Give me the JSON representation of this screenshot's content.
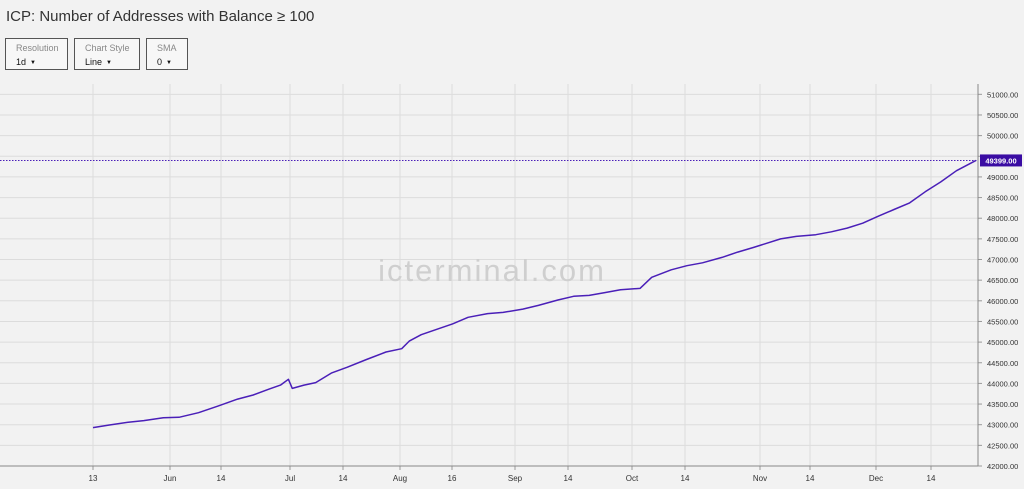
{
  "title": "ICP: Number of Addresses with Balance ≥ 100",
  "controls": {
    "resolution": {
      "label": "Resolution",
      "value": "1d"
    },
    "chart_style": {
      "label": "Chart Style",
      "value": "Line"
    },
    "sma": {
      "label": "SMA",
      "value": "0"
    }
  },
  "watermark": "icterminal.com",
  "colors": {
    "line": "#4a1fb8",
    "background": "#f2f2f2",
    "grid": "#dcdcdc",
    "last_value_badge": "#3a0ca3"
  },
  "chart_data": {
    "type": "line",
    "title": "ICP: Number of Addresses with Balance ≥ 100",
    "xlabel": "",
    "ylabel": "",
    "ylim": [
      42000,
      51250
    ],
    "grid": true,
    "last_value_label": "49399.00",
    "x_ticks": [
      "13",
      "Jun",
      "14",
      "Jul",
      "14",
      "Aug",
      "16",
      "Sep",
      "14",
      "Oct",
      "14",
      "Nov",
      "14",
      "Dec",
      "14"
    ],
    "y_ticks": [
      "51000.00",
      "50500.00",
      "50000.00",
      "49500.00",
      "49000.00",
      "48500.00",
      "48000.00",
      "47500.00",
      "47000.00",
      "46500.00",
      "46000.00",
      "45500.00",
      "45000.00",
      "44500.00",
      "44000.00",
      "43500.00",
      "43000.00",
      "42500.00",
      "42000.00"
    ],
    "x_range": [
      "2023-05-13",
      "2023-12-25"
    ],
    "series": [
      {
        "points": [
          [
            "2023-05-13",
            42930
          ],
          [
            "2023-05-17",
            42990
          ],
          [
            "2023-05-22",
            43060
          ],
          [
            "2023-05-26",
            43100
          ],
          [
            "2023-05-31",
            43170
          ],
          [
            "2023-06-04",
            43180
          ],
          [
            "2023-06-09",
            43290
          ],
          [
            "2023-06-14",
            43450
          ],
          [
            "2023-06-19",
            43620
          ],
          [
            "2023-06-23",
            43720
          ],
          [
            "2023-06-27",
            43860
          ],
          [
            "2023-06-30",
            43960
          ],
          [
            "2023-07-02",
            44100
          ],
          [
            "2023-07-03",
            43880
          ],
          [
            "2023-07-06",
            43960
          ],
          [
            "2023-07-09",
            44020
          ],
          [
            "2023-07-13",
            44250
          ],
          [
            "2023-07-17",
            44390
          ],
          [
            "2023-07-22",
            44580
          ],
          [
            "2023-07-27",
            44760
          ],
          [
            "2023-07-31",
            44840
          ],
          [
            "2023-08-02",
            45030
          ],
          [
            "2023-08-05",
            45180
          ],
          [
            "2023-08-09",
            45310
          ],
          [
            "2023-08-13",
            45440
          ],
          [
            "2023-08-17",
            45600
          ],
          [
            "2023-08-22",
            45690
          ],
          [
            "2023-08-26",
            45720
          ],
          [
            "2023-08-31",
            45800
          ],
          [
            "2023-09-04",
            45890
          ],
          [
            "2023-09-09",
            46020
          ],
          [
            "2023-09-13",
            46110
          ],
          [
            "2023-09-17",
            46130
          ],
          [
            "2023-09-21",
            46200
          ],
          [
            "2023-09-25",
            46270
          ],
          [
            "2023-09-30",
            46300
          ],
          [
            "2023-10-03",
            46570
          ],
          [
            "2023-10-08",
            46750
          ],
          [
            "2023-10-12",
            46850
          ],
          [
            "2023-10-16",
            46920
          ],
          [
            "2023-10-21",
            47050
          ],
          [
            "2023-10-25",
            47180
          ],
          [
            "2023-10-29",
            47290
          ],
          [
            "2023-11-01",
            47380
          ],
          [
            "2023-11-05",
            47500
          ],
          [
            "2023-11-09",
            47560
          ],
          [
            "2023-11-14",
            47600
          ],
          [
            "2023-11-18",
            47670
          ],
          [
            "2023-11-22",
            47760
          ],
          [
            "2023-11-26",
            47880
          ],
          [
            "2023-11-30",
            48050
          ],
          [
            "2023-12-04",
            48210
          ],
          [
            "2023-12-08",
            48370
          ],
          [
            "2023-12-12",
            48640
          ],
          [
            "2023-12-16",
            48880
          ],
          [
            "2023-12-20",
            49150
          ],
          [
            "2023-12-25",
            49399
          ]
        ]
      }
    ]
  }
}
